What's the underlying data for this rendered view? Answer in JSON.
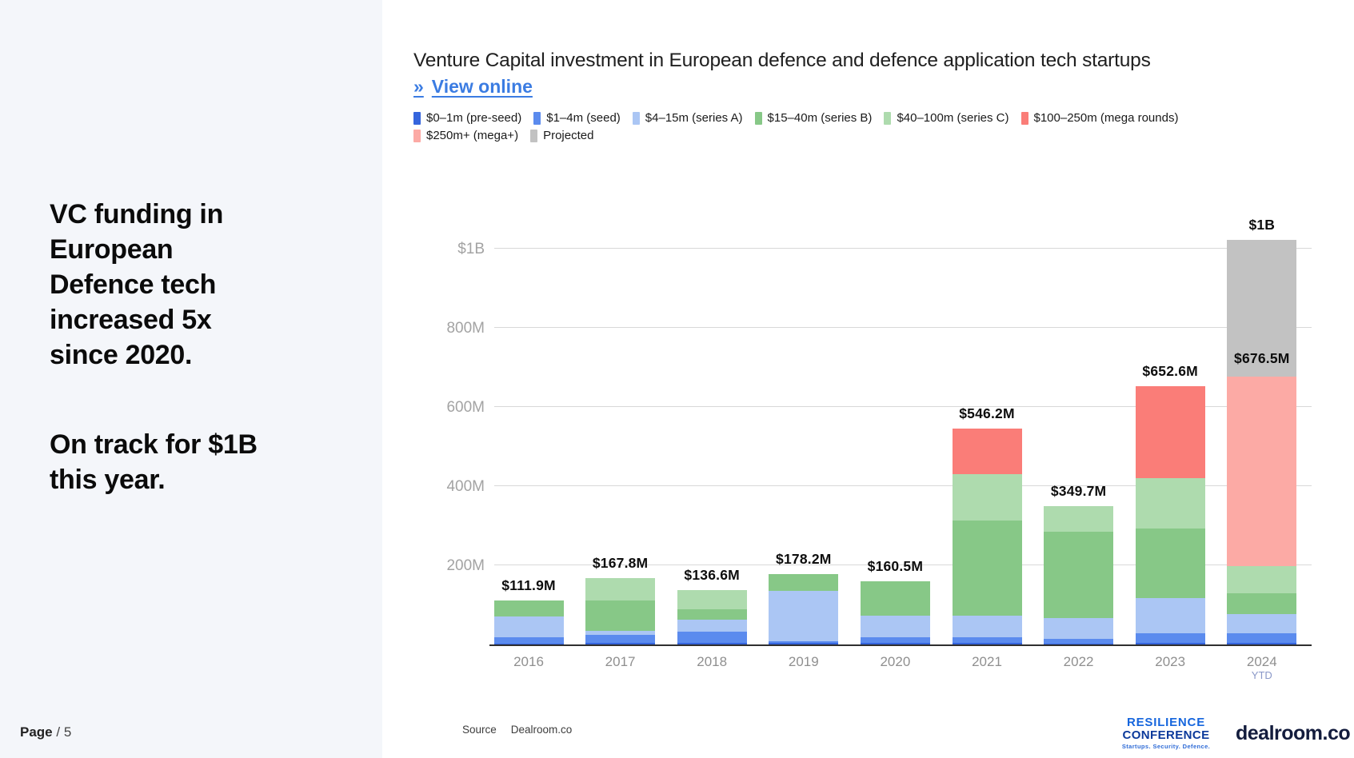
{
  "sidebar": {
    "headline1_lines": [
      "VC funding in",
      "European",
      "Defence tech",
      "increased 5x",
      "since 2020."
    ],
    "headline2_lines": [
      "On track for $1B",
      "this year."
    ],
    "page_label": "Page",
    "page_suffix": "/ 5"
  },
  "header": {
    "title": "Venture Capital investment in European defence and defence application tech startups",
    "link": {
      "marker": "»",
      "label": "View online"
    }
  },
  "footer": {
    "source_label": "Source",
    "source_value": "Dealroom.co",
    "resilience_logo": {
      "line1": "RESILIENCE",
      "line2": "CONFERENCE",
      "tagline": "Startups. Security. Defence."
    },
    "dealroom_logo": "dealroom.co"
  },
  "colors": {
    "sidebar_bg": "#f4f6fa",
    "link_blue": "#3b7ce2",
    "resilience_blue": "#1565dd",
    "resilience_navy": "#0c3a9b",
    "dealroom_navy": "#131c3d"
  },
  "chart_data": {
    "type": "bar",
    "stacked": true,
    "title": "Venture Capital investment in European defence and defence application tech startups",
    "xlabel": "",
    "ylabel": "",
    "grid": true,
    "legend_position": "top",
    "ylim": [
      0,
      1083
    ],
    "y_ticks": [
      {
        "value": 1000,
        "label": "$1B"
      },
      {
        "value": 800,
        "label": "800M"
      },
      {
        "value": 600,
        "label": "600M"
      },
      {
        "value": 400,
        "label": "400M"
      },
      {
        "value": 200,
        "label": "200M"
      }
    ],
    "categories": [
      "2016",
      "2017",
      "2018",
      "2019",
      "2020",
      "2021",
      "2022",
      "2023",
      "2024"
    ],
    "x_sub_labels": [
      {
        "category_index": 8,
        "text": "YTD"
      }
    ],
    "series": [
      {
        "name": "$0–1m (pre-seed)",
        "color": "#3565dd",
        "values": [
          3,
          4,
          5,
          3.2,
          4,
          4,
          3,
          4,
          4
        ]
      },
      {
        "name": "$1–4m (seed)",
        "color": "#5b8bee",
        "values": [
          15,
          20,
          27,
          5,
          14,
          14,
          12,
          24,
          24
        ]
      },
      {
        "name": "$4–15m (series A)",
        "color": "#abc6f4",
        "values": [
          52,
          10,
          31,
          128,
          55,
          55,
          51,
          88.5,
          48
        ]
      },
      {
        "name": "$15–40m (series B)",
        "color": "#87c887",
        "values": [
          41.9,
          78,
          25,
          42,
          87.5,
          239.2,
          218.7,
          177,
          54
        ]
      },
      {
        "name": "$40–100m (series C)",
        "color": "#aedbae",
        "values": [
          0,
          55.8,
          48.6,
          0,
          0,
          118,
          65,
          126,
          68
        ]
      },
      {
        "name": "$100–250m (mega rounds)",
        "color": "#fa7d78",
        "values": [
          0,
          0,
          0,
          0,
          0,
          116,
          0,
          233.1,
          0
        ]
      },
      {
        "name": "$250m+ (mega+)",
        "color": "#fcaaa5",
        "values": [
          0,
          0,
          0,
          0,
          0,
          0,
          0,
          0,
          478.5
        ]
      },
      {
        "name": "Projected",
        "color": "#c2c2c2",
        "values": [
          0,
          0,
          0,
          0,
          0,
          0,
          0,
          0,
          345.5
        ]
      }
    ],
    "bar_total_labels": [
      "$111.9M",
      "$167.8M",
      "$136.6M",
      "$178.2M",
      "$160.5M",
      "$546.2M",
      "$349.7M",
      "$652.6M",
      "$1B"
    ],
    "annotations": [
      {
        "category_index": 8,
        "text": "$676.5M",
        "at_value": 676.5,
        "note": "actual YTD total, below projected portion"
      }
    ]
  }
}
